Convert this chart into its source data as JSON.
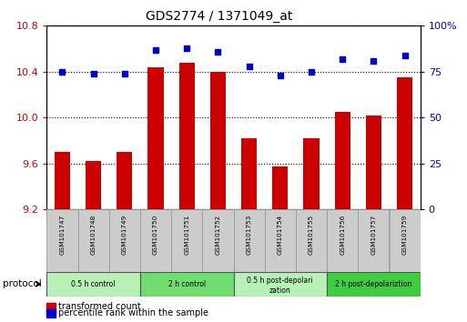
{
  "title": "GDS2774 / 1371049_at",
  "samples": [
    "GSM101747",
    "GSM101748",
    "GSM101749",
    "GSM101750",
    "GSM101751",
    "GSM101752",
    "GSM101753",
    "GSM101754",
    "GSM101755",
    "GSM101756",
    "GSM101757",
    "GSM101759"
  ],
  "bar_values": [
    9.7,
    9.62,
    9.7,
    10.44,
    10.48,
    10.4,
    9.82,
    9.57,
    9.82,
    10.05,
    10.02,
    10.35
  ],
  "dot_values": [
    75,
    74,
    74,
    87,
    88,
    86,
    78,
    73,
    75,
    82,
    81,
    84
  ],
  "ylim_left": [
    9.2,
    10.8
  ],
  "ylim_right": [
    0,
    100
  ],
  "yticks_left": [
    9.2,
    9.6,
    10.0,
    10.4,
    10.8
  ],
  "yticks_right": [
    0,
    25,
    50,
    75,
    100
  ],
  "bar_color": "#cc0000",
  "dot_color": "#0000cc",
  "grid_color": "#000000",
  "protocol_groups": [
    {
      "label": "0.5 h control",
      "start": 0,
      "end": 3,
      "color": "#b8f0b8"
    },
    {
      "label": "2 h control",
      "start": 3,
      "end": 6,
      "color": "#70dd70"
    },
    {
      "label": "0.5 h post-depolarization",
      "start": 6,
      "end": 9,
      "color": "#b8f0b8"
    },
    {
      "label": "2 h post-depolariztion",
      "start": 9,
      "end": 12,
      "color": "#40cc40"
    }
  ],
  "legend_items": [
    {
      "label": "transformed count",
      "color": "#cc0000"
    },
    {
      "label": "percentile rank within the sample",
      "color": "#0000cc"
    }
  ],
  "tick_color_left": "#cc0000",
  "tick_color_right": "#0000cc",
  "label_gray": "#cccccc",
  "label_edge": "#aaaaaa"
}
